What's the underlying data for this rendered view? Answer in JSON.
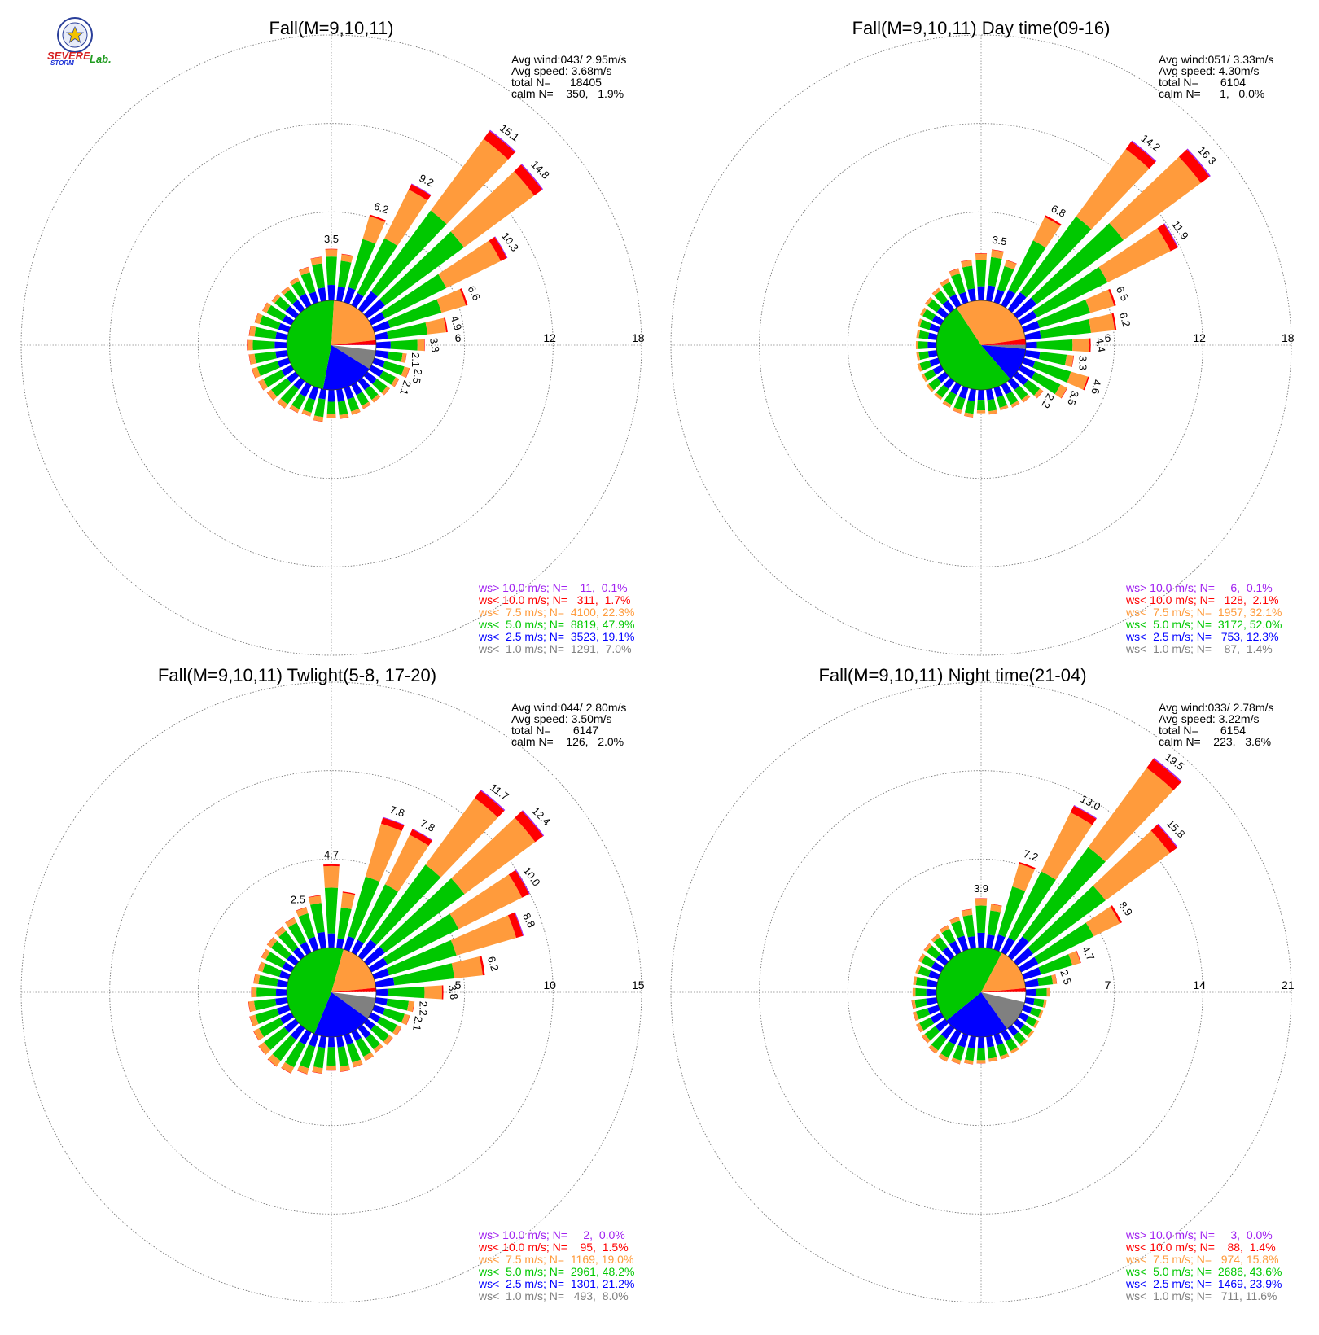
{
  "logo": {
    "text_severe": "SEVERE",
    "text_storm": "STORM",
    "text_lab": "Lab.",
    "colors": {
      "severe": "#d62020",
      "storm": "#1a2fd6",
      "lab": "#1e9a1e",
      "seal": "#2a3f9a",
      "star": "#f2c200"
    }
  },
  "colors": {
    "gt10": "#a020f0",
    "lt10": "#ff0000",
    "lt7_5": "#ff9b3c",
    "lt5": "#00c800",
    "lt2_5": "#0000ff",
    "lt1": "#808080",
    "calm_pie": "#ffffff"
  },
  "chart_data": [
    {
      "type": "windrose",
      "title": "Fall(M=9,10,11)",
      "stats": {
        "avg_wind": "Avg wind:043/ 2.95m/s",
        "avg_speed": "Avg speed: 3.68m/s",
        "total": "total N=      18405",
        "calm": "calm N=    350,   1.9%"
      },
      "rmax": 18,
      "rings": [
        6,
        12,
        18
      ],
      "labels": [
        {
          "dir": 0,
          "text": "3.5"
        },
        {
          "dir": 20,
          "text": "6.2"
        },
        {
          "dir": 30,
          "text": "9.2"
        },
        {
          "dir": 40,
          "text": "15.1"
        },
        {
          "dir": 50,
          "text": "14.8"
        },
        {
          "dir": 60,
          "text": "10.3"
        },
        {
          "dir": 70,
          "text": "6.6"
        },
        {
          "dir": 80,
          "text": "4.9"
        },
        {
          "dir": 90,
          "text": "3.3"
        },
        {
          "dir": 100,
          "text": "2.1"
        },
        {
          "dir": 110,
          "text": "2.5"
        },
        {
          "dir": 120,
          "text": "2.1"
        }
      ],
      "totals": [
        3.5,
        3.2,
        6.2,
        9.2,
        15.1,
        14.8,
        10.3,
        6.6,
        4.9,
        3.3,
        2.1,
        2.5,
        2.1,
        1.9,
        1.8,
        1.8,
        1.9,
        2.0,
        1.9,
        2.2,
        2.0,
        2.1,
        2.3,
        2.4,
        2.5,
        2.6,
        2.6,
        2.7,
        2.6,
        2.4,
        2.2,
        2.0,
        1.9,
        2.1,
        2.5,
        3.0
      ],
      "pie": [
        {
          "cat": "calm_pie",
          "pct": 1.9
        },
        {
          "cat": "lt1",
          "pct": 7.0
        },
        {
          "cat": "lt2_5",
          "pct": 19.1
        },
        {
          "cat": "lt5",
          "pct": 47.9
        },
        {
          "cat": "lt7_5",
          "pct": 22.3
        },
        {
          "cat": "lt10",
          "pct": 1.7
        },
        {
          "cat": "gt10",
          "pct": 0.1
        }
      ],
      "legend": [
        {
          "cat": "gt10",
          "text": "ws> 10.0 m/s; N=    11,  0.1%"
        },
        {
          "cat": "lt10",
          "text": "ws< 10.0 m/s; N=   311,  1.7%"
        },
        {
          "cat": "lt7_5",
          "text": "ws<  7.5 m/s; N=  4100, 22.3%"
        },
        {
          "cat": "lt5",
          "text": "ws<  5.0 m/s; N=  8819, 47.9%"
        },
        {
          "cat": "lt2_5",
          "text": "ws<  2.5 m/s; N=  3523, 19.1%"
        },
        {
          "cat": "lt1",
          "text": "ws<  1.0 m/s; N=  1291,  7.0%"
        }
      ]
    },
    {
      "type": "windrose",
      "title": "Fall(M=9,10,11) Day time(09-16)",
      "stats": {
        "avg_wind": "Avg wind:051/ 3.33m/s",
        "avg_speed": "Avg speed: 4.30m/s",
        "total": "total N=       6104",
        "calm": "calm N=      1,   0.0%"
      },
      "rmax": 18,
      "rings": [
        6,
        12,
        18
      ],
      "labels": [
        {
          "dir": 10,
          "text": "3.5"
        },
        {
          "dir": 30,
          "text": "6.8"
        },
        {
          "dir": 40,
          "text": "14.2"
        },
        {
          "dir": 50,
          "text": "16.3"
        },
        {
          "dir": 60,
          "text": "11.9"
        },
        {
          "dir": 70,
          "text": "6.5"
        },
        {
          "dir": 80,
          "text": "6.2"
        },
        {
          "dir": 90,
          "text": "4.4"
        },
        {
          "dir": 100,
          "text": "3.3"
        },
        {
          "dir": 110,
          "text": "4.6"
        },
        {
          "dir": 120,
          "text": "3.5"
        },
        {
          "dir": 130,
          "text": "2.2"
        }
      ],
      "totals": [
        3.2,
        3.5,
        3.0,
        6.8,
        14.2,
        16.3,
        11.9,
        6.5,
        6.2,
        4.4,
        3.3,
        4.6,
        3.5,
        2.2,
        1.8,
        1.7,
        1.6,
        1.7,
        1.6,
        1.9,
        1.8,
        1.7,
        1.6,
        1.6,
        1.5,
        1.5,
        1.4,
        1.4,
        1.4,
        1.5,
        1.6,
        1.7,
        1.8,
        2.0,
        2.4,
        2.8
      ],
      "pie": [
        {
          "cat": "calm_pie",
          "pct": 0.0
        },
        {
          "cat": "lt1",
          "pct": 1.4
        },
        {
          "cat": "lt2_5",
          "pct": 12.3
        },
        {
          "cat": "lt5",
          "pct": 52.0
        },
        {
          "cat": "lt7_5",
          "pct": 32.1
        },
        {
          "cat": "lt10",
          "pct": 2.1
        },
        {
          "cat": "gt10",
          "pct": 0.1
        }
      ],
      "legend": [
        {
          "cat": "gt10",
          "text": "ws> 10.0 m/s; N=     6,  0.1%"
        },
        {
          "cat": "lt10",
          "text": "ws< 10.0 m/s; N=   128,  2.1%"
        },
        {
          "cat": "lt7_5",
          "text": "ws<  7.5 m/s; N=  1957, 32.1%"
        },
        {
          "cat": "lt5",
          "text": "ws<  5.0 m/s; N=  3172, 52.0%"
        },
        {
          "cat": "lt2_5",
          "text": "ws<  2.5 m/s; N=   753, 12.3%"
        },
        {
          "cat": "lt1",
          "text": "ws<  1.0 m/s; N=    87,  1.4%"
        }
      ]
    },
    {
      "type": "windrose",
      "title": "Fall(M=9,10,11) Twlight(5-8, 17-20)",
      "stats": {
        "avg_wind": "Avg wind:044/ 2.80m/s",
        "avg_speed": "Avg speed: 3.50m/s",
        "total": "total N=       6147",
        "calm": "calm N=    126,   2.0%"
      },
      "rmax": 15,
      "rings": [
        5,
        10,
        15
      ],
      "labels": [
        {
          "dir": 340,
          "text": "2.5"
        },
        {
          "dir": 0,
          "text": "4.7"
        },
        {
          "dir": 20,
          "text": "7.8"
        },
        {
          "dir": 30,
          "text": "7.8"
        },
        {
          "dir": 40,
          "text": "11.7"
        },
        {
          "dir": 50,
          "text": "12.4"
        },
        {
          "dir": 60,
          "text": "10.0"
        },
        {
          "dir": 70,
          "text": "8.8"
        },
        {
          "dir": 80,
          "text": "6.2"
        },
        {
          "dir": 90,
          "text": "3.8"
        },
        {
          "dir": 100,
          "text": "2.2"
        },
        {
          "dir": 110,
          "text": "2.1"
        }
      ],
      "totals": [
        4.7,
        3.2,
        7.8,
        7.8,
        11.7,
        12.4,
        10.0,
        8.8,
        6.2,
        3.8,
        2.2,
        2.1,
        1.9,
        1.8,
        1.7,
        1.8,
        1.9,
        2.0,
        1.9,
        2.1,
        2.3,
        2.6,
        2.7,
        2.6,
        2.4,
        2.3,
        2.2,
        2.0,
        1.9,
        1.8,
        1.9,
        2.0,
        2.1,
        2.2,
        2.5,
        3.0
      ],
      "pie": [
        {
          "cat": "calm_pie",
          "pct": 2.0
        },
        {
          "cat": "lt1",
          "pct": 8.0
        },
        {
          "cat": "lt2_5",
          "pct": 21.2
        },
        {
          "cat": "lt5",
          "pct": 48.2
        },
        {
          "cat": "lt7_5",
          "pct": 19.0
        },
        {
          "cat": "lt10",
          "pct": 1.5
        },
        {
          "cat": "gt10",
          "pct": 0.0
        }
      ],
      "legend": [
        {
          "cat": "gt10",
          "text": "ws> 10.0 m/s; N=     2,  0.0%"
        },
        {
          "cat": "lt10",
          "text": "ws< 10.0 m/s; N=    95,  1.5%"
        },
        {
          "cat": "lt7_5",
          "text": "ws<  7.5 m/s; N=  1169, 19.0%"
        },
        {
          "cat": "lt5",
          "text": "ws<  5.0 m/s; N=  2961, 48.2%"
        },
        {
          "cat": "lt2_5",
          "text": "ws<  2.5 m/s; N=  1301, 21.2%"
        },
        {
          "cat": "lt1",
          "text": "ws<  1.0 m/s; N=   493,  8.0%"
        }
      ]
    },
    {
      "type": "windrose",
      "title": "Fall(M=9,10,11) Night time(21-04)",
      "stats": {
        "avg_wind": "Avg wind:033/ 2.78m/s",
        "avg_speed": "Avg speed: 3.22m/s",
        "total": "total N=       6154",
        "calm": "calm N=    223,   3.6%"
      },
      "rmax": 21,
      "rings": [
        7,
        14,
        21
      ],
      "labels": [
        {
          "dir": 0,
          "text": "3.9"
        },
        {
          "dir": 20,
          "text": "7.2"
        },
        {
          "dir": 30,
          "text": "13.0"
        },
        {
          "dir": 40,
          "text": "19.5"
        },
        {
          "dir": 50,
          "text": "15.8"
        },
        {
          "dir": 60,
          "text": "8.9"
        },
        {
          "dir": 70,
          "text": "4.7"
        },
        {
          "dir": 80,
          "text": "2.5"
        }
      ],
      "totals": [
        3.9,
        3.5,
        7.2,
        13.0,
        19.5,
        15.8,
        8.9,
        4.7,
        2.5,
        1.9,
        1.7,
        1.6,
        1.6,
        1.7,
        1.8,
        1.9,
        2.0,
        2.0,
        2.1,
        2.2,
        2.4,
        2.6,
        2.5,
        2.3,
        2.2,
        2.1,
        2.0,
        1.9,
        1.9,
        1.9,
        2.0,
        2.1,
        2.2,
        2.4,
        2.7,
        3.1
      ],
      "pie": [
        {
          "cat": "calm_pie",
          "pct": 3.6
        },
        {
          "cat": "lt1",
          "pct": 11.6
        },
        {
          "cat": "lt2_5",
          "pct": 23.9
        },
        {
          "cat": "lt5",
          "pct": 43.6
        },
        {
          "cat": "lt7_5",
          "pct": 15.8
        },
        {
          "cat": "lt10",
          "pct": 1.4
        },
        {
          "cat": "gt10",
          "pct": 0.0
        }
      ],
      "legend": [
        {
          "cat": "gt10",
          "text": "ws> 10.0 m/s; N=     3,  0.0%"
        },
        {
          "cat": "lt10",
          "text": "ws< 10.0 m/s; N=    88,  1.4%"
        },
        {
          "cat": "lt7_5",
          "text": "ws<  7.5 m/s; N=   974, 15.8%"
        },
        {
          "cat": "lt5",
          "text": "ws<  5.0 m/s; N=  2686, 43.6%"
        },
        {
          "cat": "lt2_5",
          "text": "ws<  2.5 m/s; N=  1469, 23.9%"
        },
        {
          "cat": "lt1",
          "text": "ws<  1.0 m/s; N=   711, 11.6%"
        }
      ]
    }
  ]
}
